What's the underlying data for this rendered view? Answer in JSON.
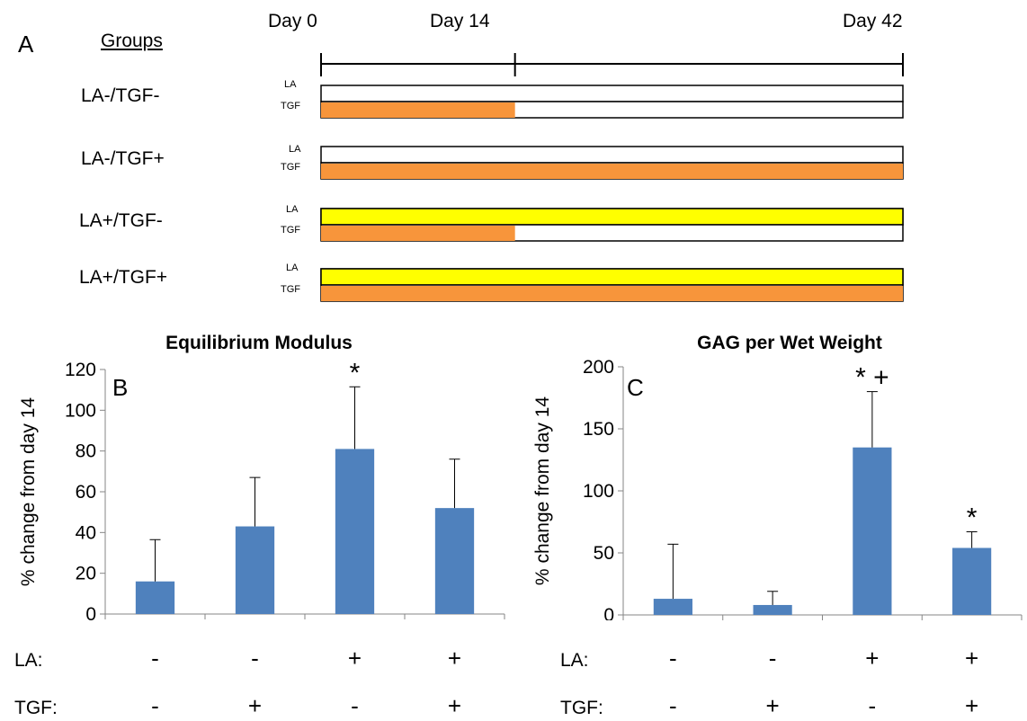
{
  "panel_a": {
    "letter": "A",
    "groups_heading": "Groups",
    "days": [
      "Day 0",
      "Day 14",
      "Day 42"
    ],
    "day_values": [
      0,
      14,
      42
    ],
    "row_labels": [
      "LA",
      "TGF"
    ],
    "groups": [
      {
        "label": "LA-/TGF-",
        "la": {
          "start": 0,
          "end": 0
        },
        "tgf": {
          "start": 0,
          "end": 14
        }
      },
      {
        "label": "LA-/TGF+",
        "la": {
          "start": 0,
          "end": 0
        },
        "tgf": {
          "start": 0,
          "end": 42
        }
      },
      {
        "label": "LA+/TGF-",
        "la": {
          "start": 0,
          "end": 42
        },
        "tgf": {
          "start": 0,
          "end": 14
        }
      },
      {
        "label": "LA+/TGF+",
        "la": {
          "start": 0,
          "end": 42
        },
        "tgf": {
          "start": 0,
          "end": 42
        }
      }
    ],
    "colors": {
      "la": "#ffff00",
      "tgf": "#f7953b"
    }
  },
  "factor_rows": [
    {
      "label": "LA:",
      "values": [
        "-",
        "-",
        "+",
        "+"
      ]
    },
    {
      "label": "TGF:",
      "values": [
        "-",
        "+",
        "-",
        "+"
      ]
    }
  ],
  "chart_data": [
    {
      "type": "bar",
      "panel": "B",
      "title": "Equilibrium Modulus",
      "ylabel": "% change from day 14",
      "ylim": [
        0,
        120
      ],
      "yticks": [
        0,
        20,
        40,
        60,
        80,
        100,
        120
      ],
      "categories": [
        "LA-/TGF-",
        "LA-/TGF+",
        "LA+/TGF-",
        "LA+/TGF+"
      ],
      "values": [
        16,
        43,
        81,
        52
      ],
      "error_upper": [
        20.5,
        24,
        30.5,
        24
      ],
      "annotations": [
        "",
        "",
        "*",
        ""
      ],
      "color": "#4f81bd"
    },
    {
      "type": "bar",
      "panel": "C",
      "title": "GAG per Wet Weight",
      "ylabel": "% change from day 14",
      "ylim": [
        0,
        200
      ],
      "yticks": [
        0,
        50,
        100,
        150,
        200
      ],
      "categories": [
        "LA-/TGF-",
        "LA-/TGF+",
        "LA+/TGF-",
        "LA+/TGF+"
      ],
      "values": [
        13,
        8,
        135,
        54
      ],
      "error_upper": [
        44,
        11,
        45,
        13
      ],
      "annotations": [
        "",
        "",
        "* +",
        "*"
      ],
      "color": "#4f81bd"
    }
  ]
}
